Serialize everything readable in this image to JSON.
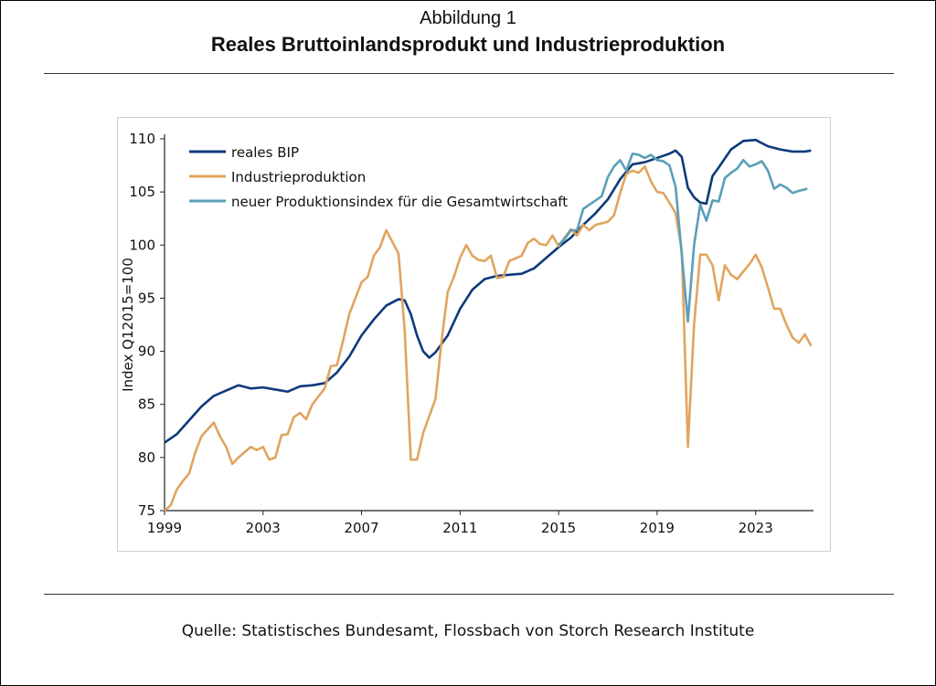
{
  "header": {
    "figure_label": "Abbildung 1",
    "title": "Reales Bruttoinlandsprodukt und Industrieproduktion"
  },
  "footer": {
    "source": "Quelle: Statistisches Bundesamt, Flossbach von Storch Research Institute"
  },
  "chart_data": {
    "type": "line",
    "title": "Reales Bruttoinlandsprodukt und Industrieproduktion",
    "xlabel": "",
    "ylabel": "Index Q12015=100",
    "xlim": [
      1999,
      2025.35
    ],
    "ylim": [
      75,
      110
    ],
    "xticks": [
      1999,
      2003,
      2007,
      2011,
      2015,
      2019,
      2023
    ],
    "yticks": [
      75,
      80,
      85,
      90,
      95,
      100,
      105,
      110
    ],
    "legend": "top-left",
    "series": [
      {
        "name": "reales BIP",
        "color": "#0d3a7a",
        "points": [
          [
            1999,
            81.4
          ],
          [
            1999.5,
            82.2
          ],
          [
            2000,
            83.5
          ],
          [
            2000.5,
            84.8
          ],
          [
            2001,
            85.8
          ],
          [
            2001.5,
            86.3
          ],
          [
            2002,
            86.8
          ],
          [
            2002.5,
            86.5
          ],
          [
            2003,
            86.6
          ],
          [
            2003.5,
            86.4
          ],
          [
            2004,
            86.2
          ],
          [
            2004.5,
            86.7
          ],
          [
            2005,
            86.8
          ],
          [
            2005.5,
            87.0
          ],
          [
            2006,
            88.0
          ],
          [
            2006.5,
            89.5
          ],
          [
            2007,
            91.5
          ],
          [
            2007.5,
            93.0
          ],
          [
            2008,
            94.3
          ],
          [
            2008.5,
            94.9
          ],
          [
            2008.75,
            94.8
          ],
          [
            2009,
            93.5
          ],
          [
            2009.25,
            91.5
          ],
          [
            2009.5,
            90.0
          ],
          [
            2009.75,
            89.4
          ],
          [
            2010,
            89.9
          ],
          [
            2010.5,
            91.5
          ],
          [
            2011,
            94.0
          ],
          [
            2011.5,
            95.8
          ],
          [
            2012,
            96.8
          ],
          [
            2012.5,
            97.1
          ],
          [
            2013,
            97.2
          ],
          [
            2013.5,
            97.3
          ],
          [
            2014,
            97.8
          ],
          [
            2014.5,
            98.8
          ],
          [
            2015,
            99.8
          ],
          [
            2015.5,
            100.7
          ],
          [
            2016,
            101.9
          ],
          [
            2016.5,
            103.0
          ],
          [
            2017,
            104.3
          ],
          [
            2017.5,
            106.2
          ],
          [
            2018,
            107.6
          ],
          [
            2018.5,
            107.8
          ],
          [
            2019,
            108.2
          ],
          [
            2019.5,
            108.6
          ],
          [
            2019.75,
            108.9
          ],
          [
            2020,
            108.3
          ],
          [
            2020.25,
            105.4
          ],
          [
            2020.5,
            104.5
          ],
          [
            2020.75,
            104.0
          ],
          [
            2021,
            103.9
          ],
          [
            2021.25,
            106.5
          ],
          [
            2021.5,
            107.3
          ],
          [
            2022,
            109.0
          ],
          [
            2022.5,
            109.8
          ],
          [
            2023,
            109.9
          ],
          [
            2023.5,
            109.3
          ],
          [
            2024,
            109.0
          ],
          [
            2024.5,
            108.8
          ],
          [
            2025,
            108.8
          ],
          [
            2025.25,
            108.9
          ]
        ]
      },
      {
        "name": "Industrieproduktion",
        "color": "#e0a55e",
        "points": [
          [
            1999,
            75.0
          ],
          [
            1999.25,
            75.5
          ],
          [
            1999.5,
            77.0
          ],
          [
            1999.75,
            77.8
          ],
          [
            2000,
            78.5
          ],
          [
            2000.25,
            80.5
          ],
          [
            2000.5,
            82.0
          ],
          [
            2001,
            83.3
          ],
          [
            2001.25,
            82.0
          ],
          [
            2001.5,
            81.0
          ],
          [
            2001.75,
            79.4
          ],
          [
            2002,
            80.0
          ],
          [
            2002.5,
            81.0
          ],
          [
            2002.75,
            80.7
          ],
          [
            2003,
            81.0
          ],
          [
            2003.25,
            79.8
          ],
          [
            2003.5,
            80.0
          ],
          [
            2003.75,
            82.1
          ],
          [
            2004,
            82.2
          ],
          [
            2004.25,
            83.8
          ],
          [
            2004.5,
            84.2
          ],
          [
            2004.75,
            83.6
          ],
          [
            2005,
            85.0
          ],
          [
            2005.5,
            86.5
          ],
          [
            2005.75,
            88.6
          ],
          [
            2006,
            88.7
          ],
          [
            2006.25,
            91.0
          ],
          [
            2006.5,
            93.5
          ],
          [
            2007,
            96.5
          ],
          [
            2007.25,
            97.0
          ],
          [
            2007.5,
            99.0
          ],
          [
            2007.75,
            99.8
          ],
          [
            2008,
            101.4
          ],
          [
            2008.5,
            99.2
          ],
          [
            2008.75,
            92.0
          ],
          [
            2009,
            79.8
          ],
          [
            2009.25,
            79.8
          ],
          [
            2009.5,
            82.3
          ],
          [
            2010,
            85.5
          ],
          [
            2010.25,
            91.0
          ],
          [
            2010.5,
            95.6
          ],
          [
            2010.75,
            97.0
          ],
          [
            2011,
            98.8
          ],
          [
            2011.25,
            100.0
          ],
          [
            2011.5,
            99.0
          ],
          [
            2011.75,
            98.6
          ],
          [
            2012,
            98.5
          ],
          [
            2012.25,
            99.0
          ],
          [
            2012.5,
            96.9
          ],
          [
            2012.75,
            97.0
          ],
          [
            2013,
            98.5
          ],
          [
            2013.5,
            99.0
          ],
          [
            2013.75,
            100.2
          ],
          [
            2014,
            100.6
          ],
          [
            2014.25,
            100.1
          ],
          [
            2014.5,
            100.0
          ],
          [
            2014.75,
            100.9
          ],
          [
            2015,
            99.9
          ],
          [
            2015.5,
            101.5
          ],
          [
            2015.75,
            100.9
          ],
          [
            2016,
            101.9
          ],
          [
            2016.25,
            101.4
          ],
          [
            2016.5,
            101.9
          ],
          [
            2017,
            102.2
          ],
          [
            2017.25,
            102.8
          ],
          [
            2017.5,
            104.9
          ],
          [
            2017.75,
            106.7
          ],
          [
            2018,
            107.0
          ],
          [
            2018.25,
            106.8
          ],
          [
            2018.5,
            107.4
          ],
          [
            2018.75,
            106.0
          ],
          [
            2019,
            105.0
          ],
          [
            2019.25,
            104.9
          ],
          [
            2019.5,
            104.0
          ],
          [
            2019.75,
            103.0
          ],
          [
            2020,
            99.5
          ],
          [
            2020.25,
            81.0
          ],
          [
            2020.5,
            92.5
          ],
          [
            2020.75,
            99.1
          ],
          [
            2021,
            99.1
          ],
          [
            2021.25,
            98.1
          ],
          [
            2021.5,
            94.8
          ],
          [
            2021.75,
            98.1
          ],
          [
            2022,
            97.2
          ],
          [
            2022.25,
            96.8
          ],
          [
            2022.5,
            97.5
          ],
          [
            2022.75,
            98.2
          ],
          [
            2023,
            99.1
          ],
          [
            2023.25,
            97.9
          ],
          [
            2023.5,
            96.0
          ],
          [
            2023.75,
            94.0
          ],
          [
            2024,
            94.0
          ],
          [
            2024.25,
            92.5
          ],
          [
            2024.5,
            91.3
          ],
          [
            2024.75,
            90.8
          ],
          [
            2025,
            91.6
          ],
          [
            2025.25,
            90.5
          ]
        ]
      },
      {
        "name": "neuer Produktionsindex für die Gesamtwirtschaft",
        "color": "#5a9fb8",
        "points": [
          [
            2015,
            100.0
          ],
          [
            2015.25,
            100.6
          ],
          [
            2015.5,
            101.4
          ],
          [
            2015.75,
            101.4
          ],
          [
            2016,
            103.4
          ],
          [
            2016.25,
            103.8
          ],
          [
            2016.5,
            104.2
          ],
          [
            2016.75,
            104.6
          ],
          [
            2017,
            106.4
          ],
          [
            2017.25,
            107.4
          ],
          [
            2017.5,
            108.0
          ],
          [
            2017.75,
            107.0
          ],
          [
            2018,
            108.6
          ],
          [
            2018.25,
            108.5
          ],
          [
            2018.5,
            108.2
          ],
          [
            2018.75,
            108.5
          ],
          [
            2019,
            108.0
          ],
          [
            2019.25,
            107.9
          ],
          [
            2019.5,
            107.5
          ],
          [
            2019.75,
            105.5
          ],
          [
            2020.25,
            92.8
          ],
          [
            2020.5,
            100.0
          ],
          [
            2020.75,
            103.8
          ],
          [
            2021,
            102.3
          ],
          [
            2021.25,
            104.2
          ],
          [
            2021.5,
            104.1
          ],
          [
            2021.75,
            106.3
          ],
          [
            2022,
            106.8
          ],
          [
            2022.25,
            107.2
          ],
          [
            2022.5,
            108.0
          ],
          [
            2022.75,
            107.4
          ],
          [
            2023,
            107.6
          ],
          [
            2023.25,
            107.9
          ],
          [
            2023.5,
            107.0
          ],
          [
            2023.75,
            105.3
          ],
          [
            2024,
            105.7
          ],
          [
            2024.25,
            105.4
          ],
          [
            2024.5,
            104.9
          ],
          [
            2024.75,
            105.1
          ],
          [
            2025.1,
            105.3
          ]
        ]
      }
    ]
  }
}
